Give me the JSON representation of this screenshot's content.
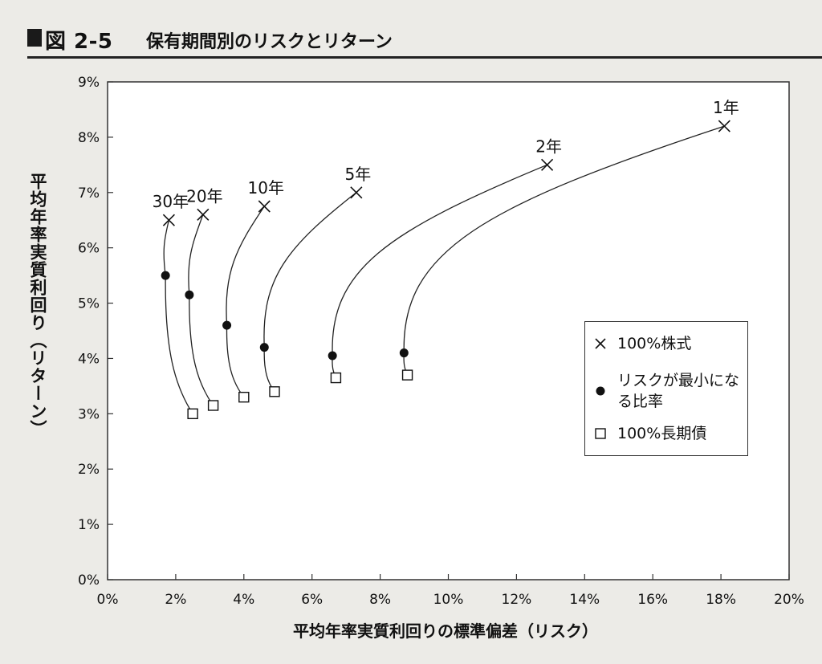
{
  "header": {
    "figure_number": "図 2-5",
    "title": "保有期間別のリスクとリターン"
  },
  "chart_data": {
    "type": "line",
    "title": "保有期間別のリスクとリターン",
    "xlabel": "平均年率実質利回りの標準偏差（リスク）",
    "ylabel": "平均年率実質利回り（リターン）",
    "xlim": [
      0,
      20
    ],
    "ylim": [
      0,
      9
    ],
    "x_ticks": [
      "0%",
      "2%",
      "4%",
      "6%",
      "8%",
      "10%",
      "12%",
      "14%",
      "16%",
      "18%",
      "20%"
    ],
    "y_ticks": [
      "0%",
      "1%",
      "2%",
      "3%",
      "4%",
      "5%",
      "6%",
      "7%",
      "8%",
      "9%"
    ],
    "grid": false,
    "legend_position": "right",
    "legend": [
      {
        "marker": "cross",
        "label": "100%株式"
      },
      {
        "marker": "dot",
        "label": "リスクが最小になる比率"
      },
      {
        "marker": "square",
        "label": "100%長期債"
      }
    ],
    "series": [
      {
        "name": "1年",
        "stock": [
          18.1,
          8.2
        ],
        "min_risk": [
          8.7,
          4.1
        ],
        "bond": [
          8.8,
          3.7
        ]
      },
      {
        "name": "2年",
        "stock": [
          12.9,
          7.5
        ],
        "min_risk": [
          6.6,
          4.05
        ],
        "bond": [
          6.7,
          3.65
        ]
      },
      {
        "name": "5年",
        "stock": [
          7.3,
          7.0
        ],
        "min_risk": [
          4.6,
          4.2
        ],
        "bond": [
          4.9,
          3.4
        ]
      },
      {
        "name": "10年",
        "stock": [
          4.6,
          6.75
        ],
        "min_risk": [
          3.5,
          4.6
        ],
        "bond": [
          4.0,
          3.3
        ]
      },
      {
        "name": "20年",
        "stock": [
          2.8,
          6.6
        ],
        "min_risk": [
          2.4,
          5.15
        ],
        "bond": [
          3.1,
          3.15
        ]
      },
      {
        "name": "30年",
        "stock": [
          1.8,
          6.5
        ],
        "min_risk": [
          1.7,
          5.5
        ],
        "bond": [
          2.5,
          3.0
        ]
      }
    ]
  }
}
